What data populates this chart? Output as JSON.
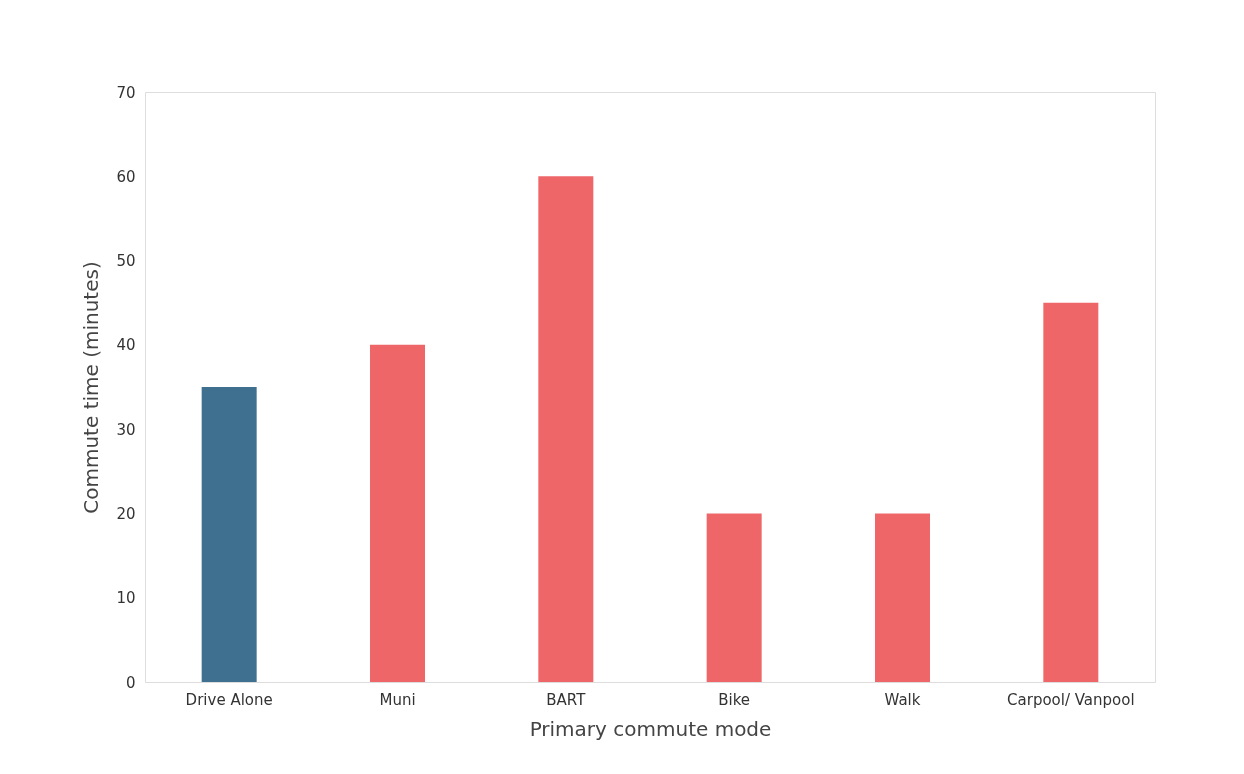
{
  "chart_data": {
    "type": "bar",
    "xlabel": "Primary commute mode",
    "ylabel": "Commute time (minutes)",
    "categories": [
      "Drive Alone",
      "Muni",
      "BART",
      "Bike",
      "Walk",
      "Carpool/ Vanpool"
    ],
    "values": [
      35,
      40,
      60,
      20,
      20,
      45
    ],
    "colors": [
      "#3f7090",
      "#ef6669",
      "#ef6669",
      "#ef6669",
      "#ef6669",
      "#ef6669"
    ],
    "ylim": [
      0,
      70
    ],
    "yticks": [
      0,
      10,
      20,
      30,
      40,
      50,
      60,
      70
    ],
    "grid": false
  }
}
